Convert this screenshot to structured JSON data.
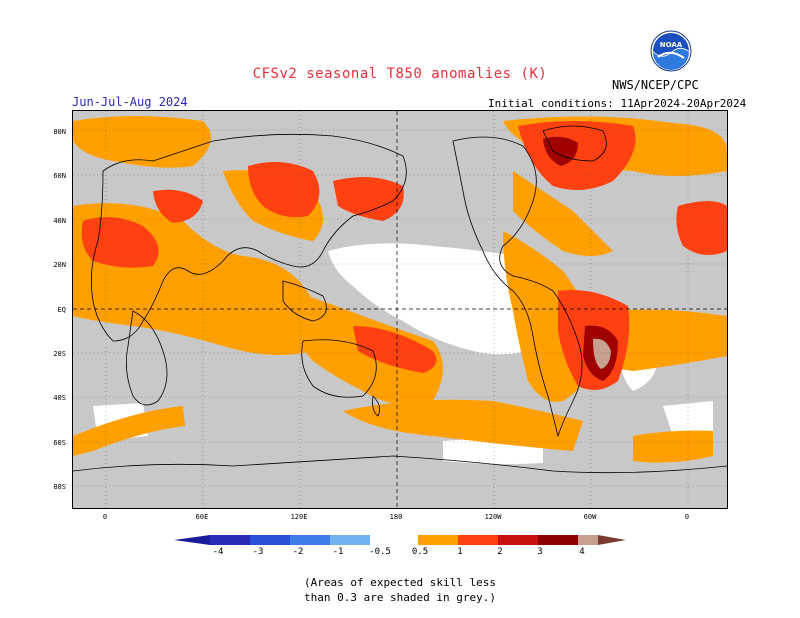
{
  "header": {
    "title": "CFSv2 seasonal T850 anomalies (K)",
    "agency": "NWS/NCEP/CPC",
    "season": "Jun-Jul-Aug 2024",
    "initial_conditions": "Initial conditions: 11Apr2024-20Apr2024",
    "logo_text": "NOAA"
  },
  "axes": {
    "lat_labels": [
      "80N",
      "60N",
      "40N",
      "20N",
      "EQ",
      "20S",
      "40S",
      "60S",
      "80S"
    ],
    "lon_labels": [
      "0",
      "60E",
      "120E",
      "180",
      "120W",
      "60W",
      "0"
    ]
  },
  "colorbar": {
    "labels": [
      "-4",
      "-3",
      "-2",
      "-1",
      "-0.5",
      "0.5",
      "1",
      "2",
      "3",
      "4"
    ],
    "colors": [
      "#1a1a9c",
      "#2a4fd8",
      "#3f7ee6",
      "#70b2f0",
      "#ffffff",
      "#ffa000",
      "#ff4010",
      "#c81010",
      "#8c0000",
      "#c8a090",
      "#7a3a30"
    ]
  },
  "footnote": {
    "line1": "(Areas of expected skill less",
    "line2": "than 0.3 are shaded in grey.)"
  },
  "legend_colors": {
    "grey_low_skill": "#c8c8c8",
    "orange_05_1": "#ffa000",
    "red_1_2": "#ff4010",
    "darkred_2_3": "#a00000"
  }
}
